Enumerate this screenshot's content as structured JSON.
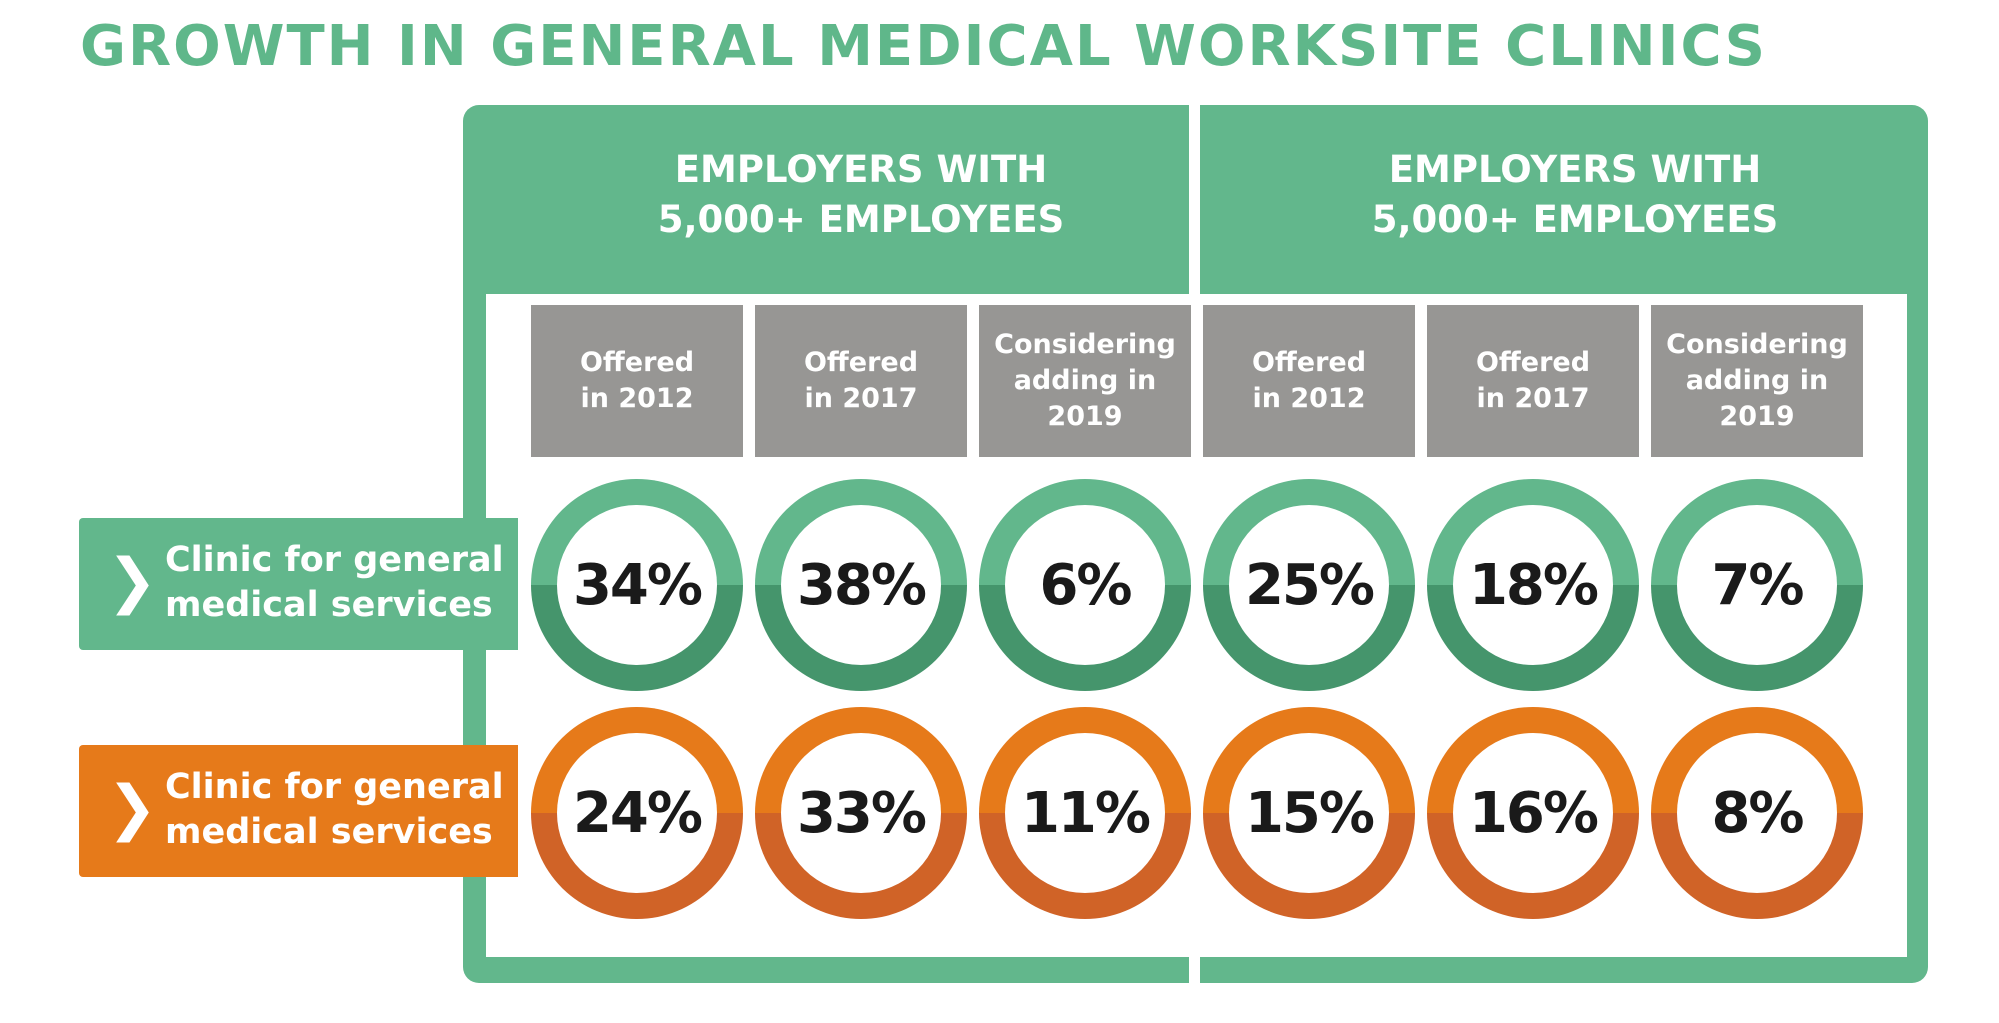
{
  "title": "GROWTH IN GENERAL MEDICAL WORKSITE CLINICS",
  "groups": [
    "EMPLOYERS WITH\n5,000+ EMPLOYEES",
    "EMPLOYERS WITH\n5,000+ EMPLOYEES"
  ],
  "columns": [
    "Offered\nin 2012",
    "Offered\nin 2017",
    "Considering\nadding in\n2019",
    "Offered\nin 2012",
    "Offered\nin 2017",
    "Considering\nadding in\n2019"
  ],
  "rows": [
    {
      "label": "Clinic for general\nmedical services",
      "icon": "chevron-right-icon",
      "colors": {
        "top": "#62b78c",
        "bottom": "#45956c"
      },
      "values": [
        "34%",
        "38%",
        "6%",
        "25%",
        "18%",
        "7%"
      ]
    },
    {
      "label": "Clinic for general\nmedical services",
      "icon": "chevron-right-icon",
      "colors": {
        "top": "#e67a1a",
        "bottom": "#d06327"
      },
      "values": [
        "24%",
        "33%",
        "11%",
        "15%",
        "16%",
        "8%"
      ]
    }
  ],
  "colors": {
    "green": "#62b78c",
    "orange": "#e67a1a",
    "gray": "#979694"
  }
}
